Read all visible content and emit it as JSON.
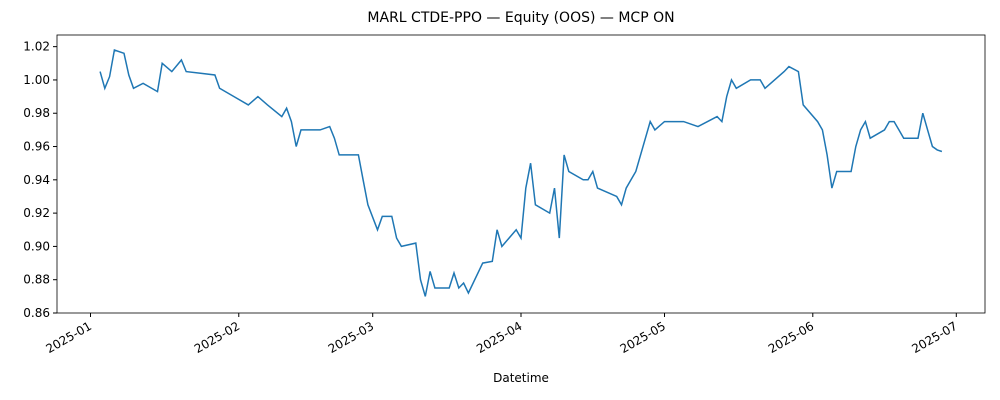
{
  "chart_data": {
    "type": "line",
    "title": "MARL CTDE-PPO — Equity (OOS) — MCP ON",
    "x_label": "Datetime",
    "x": [
      "2025-01-03",
      "2025-01-04",
      "2025-01-05",
      "2025-01-06",
      "2025-01-08",
      "2025-01-09",
      "2025-01-10",
      "2025-01-12",
      "2025-01-15",
      "2025-01-16",
      "2025-01-18",
      "2025-01-20",
      "2025-01-21",
      "2025-01-24",
      "2025-01-27",
      "2025-01-28",
      "2025-01-31",
      "2025-02-03",
      "2025-02-05",
      "2025-02-07",
      "2025-02-10",
      "2025-02-11",
      "2025-02-12",
      "2025-02-13",
      "2025-02-14",
      "2025-02-18",
      "2025-02-20",
      "2025-02-21",
      "2025-02-22",
      "2025-02-26",
      "2025-02-27",
      "2025-02-28",
      "2025-03-02",
      "2025-03-03",
      "2025-03-05",
      "2025-03-06",
      "2025-03-07",
      "2025-03-10",
      "2025-03-11",
      "2025-03-12",
      "2025-03-13",
      "2025-03-14",
      "2025-03-17",
      "2025-03-18",
      "2025-03-19",
      "2025-03-20",
      "2025-03-21",
      "2025-03-24",
      "2025-03-26",
      "2025-03-27",
      "2025-03-28",
      "2025-03-31",
      "2025-04-01",
      "2025-04-02",
      "2025-04-03",
      "2025-04-04",
      "2025-04-07",
      "2025-04-08",
      "2025-04-09",
      "2025-04-10",
      "2025-04-11",
      "2025-04-14",
      "2025-04-15",
      "2025-04-16",
      "2025-04-17",
      "2025-04-21",
      "2025-04-22",
      "2025-04-23",
      "2025-04-24",
      "2025-04-25",
      "2025-04-28",
      "2025-04-29",
      "2025-05-01",
      "2025-05-05",
      "2025-05-08",
      "2025-05-12",
      "2025-05-13",
      "2025-05-14",
      "2025-05-15",
      "2025-05-16",
      "2025-05-19",
      "2025-05-21",
      "2025-05-22",
      "2025-05-26",
      "2025-05-27",
      "2025-05-29",
      "2025-05-30",
      "2025-06-02",
      "2025-06-03",
      "2025-06-04",
      "2025-06-05",
      "2025-06-06",
      "2025-06-09",
      "2025-06-10",
      "2025-06-11",
      "2025-06-12",
      "2025-06-13",
      "2025-06-16",
      "2025-06-17",
      "2025-06-18",
      "2025-06-19",
      "2025-06-20",
      "2025-06-23",
      "2025-06-24",
      "2025-06-25",
      "2025-06-26",
      "2025-06-27",
      "2025-06-28"
    ],
    "series": [
      {
        "name": "Equity",
        "color": "#1f77b4",
        "values": [
          1.005,
          0.995,
          1.002,
          1.018,
          1.016,
          1.003,
          0.995,
          0.998,
          0.993,
          1.01,
          1.005,
          1.012,
          1.005,
          1.004,
          1.003,
          0.995,
          0.99,
          0.985,
          0.99,
          0.985,
          0.978,
          0.983,
          0.975,
          0.96,
          0.97,
          0.97,
          0.972,
          0.965,
          0.955,
          0.955,
          0.94,
          0.925,
          0.91,
          0.918,
          0.918,
          0.905,
          0.9,
          0.902,
          0.88,
          0.87,
          0.885,
          0.875,
          0.875,
          0.884,
          0.875,
          0.878,
          0.872,
          0.89,
          0.891,
          0.91,
          0.9,
          0.91,
          0.905,
          0.935,
          0.95,
          0.925,
          0.92,
          0.935,
          0.905,
          0.955,
          0.945,
          0.94,
          0.94,
          0.945,
          0.935,
          0.93,
          0.925,
          0.935,
          0.94,
          0.945,
          0.975,
          0.97,
          0.975,
          0.975,
          0.972,
          0.978,
          0.975,
          0.99,
          1.0,
          0.995,
          1.0,
          1.0,
          0.995,
          1.005,
          1.008,
          1.005,
          0.985,
          0.975,
          0.97,
          0.955,
          0.935,
          0.945,
          0.945,
          0.96,
          0.97,
          0.975,
          0.965,
          0.97,
          0.975,
          0.975,
          0.97,
          0.965,
          0.965,
          0.98,
          0.97,
          0.96,
          0.958,
          0.957
        ]
      }
    ],
    "xlim": [
      "2024-12-25",
      "2025-07-07"
    ],
    "xticks": [
      "2025-01",
      "2025-02",
      "2025-03",
      "2025-04",
      "2025-05",
      "2025-06",
      "2025-07"
    ],
    "ylim": [
      0.86,
      1.027
    ],
    "yticks": [
      0.86,
      0.88,
      {
        "value": 0.9,
        "label": "0.90"
      },
      0.92,
      0.94,
      0.96,
      0.98,
      {
        "value": 1,
        "label": "1.00"
      },
      1.02
    ],
    "grid": false
  }
}
